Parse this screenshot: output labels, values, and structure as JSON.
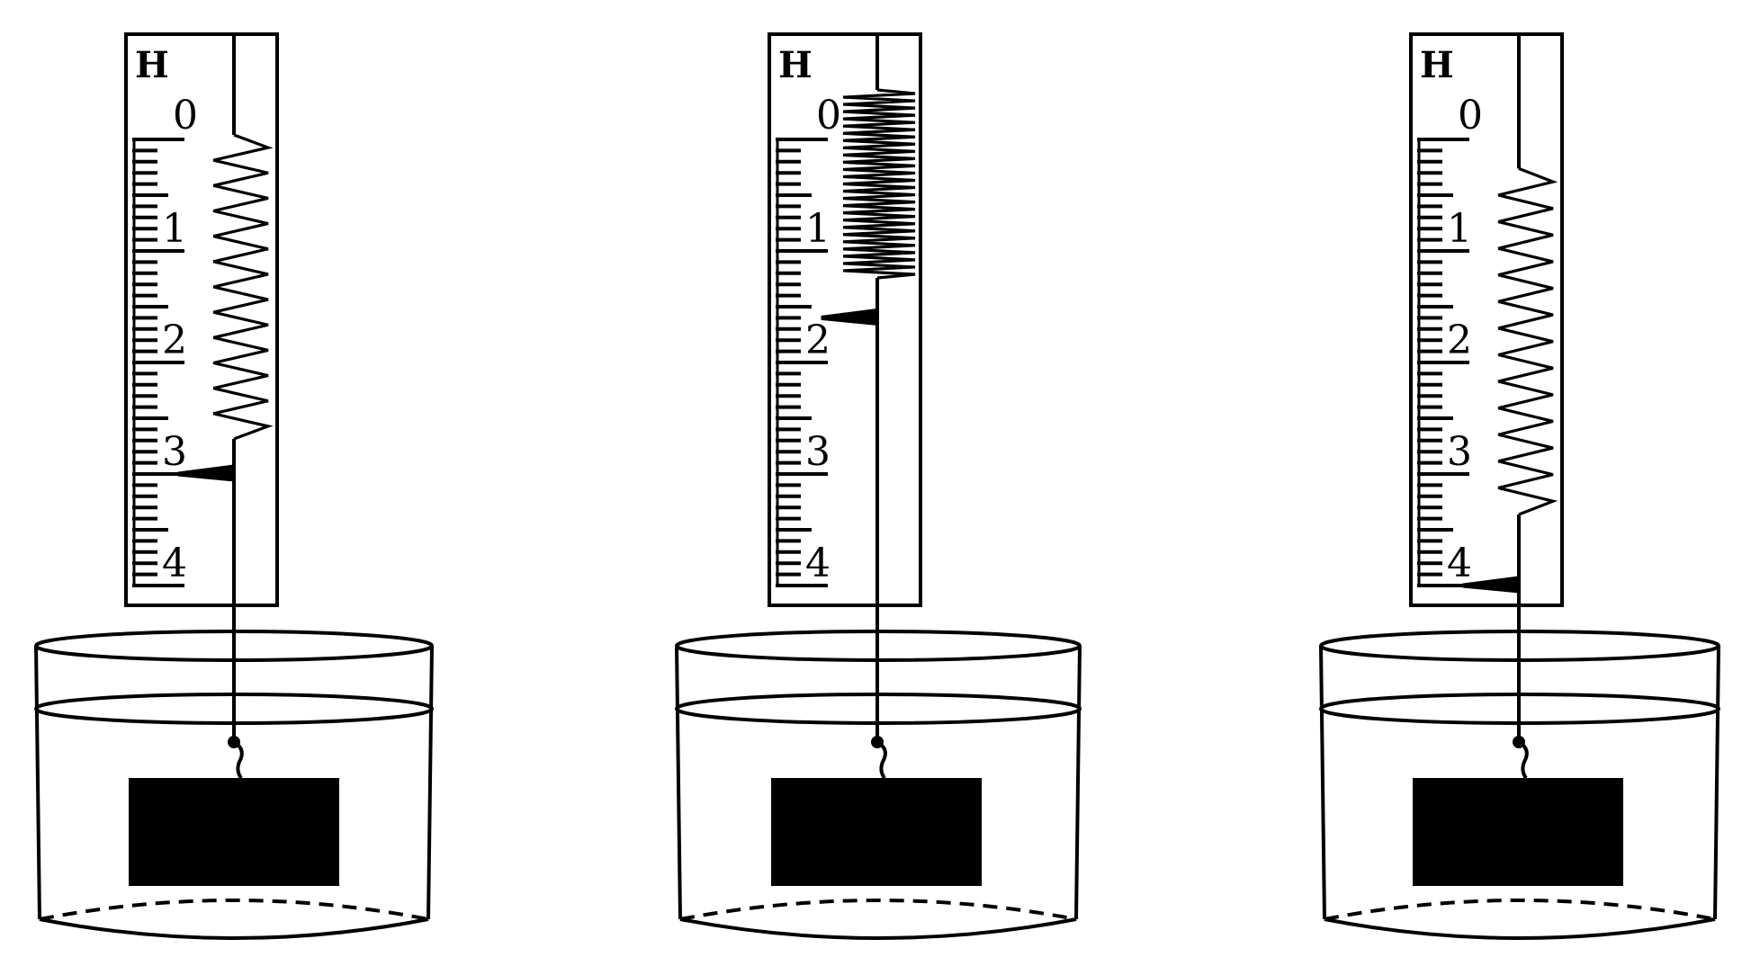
{
  "figures": [
    {
      "id": "left",
      "unit_label": "H",
      "scale_labels": [
        "0",
        "1",
        "2",
        "3",
        "4"
      ],
      "spring_state": "stretched",
      "pointer_reading": 3.0
    },
    {
      "id": "middle",
      "unit_label": "H",
      "scale_labels": [
        "0",
        "1",
        "2",
        "3",
        "4"
      ],
      "spring_state": "compressed",
      "pointer_reading": 1.6
    },
    {
      "id": "right",
      "unit_label": "H",
      "scale_labels": [
        "0",
        "1",
        "2",
        "3",
        "4"
      ],
      "spring_state": "stretched",
      "pointer_reading": 4.0
    }
  ],
  "colors": {
    "ink": "#000000",
    "paper": "#ffffff"
  },
  "icons": [
    "spring-scale-icon",
    "beaker-icon",
    "block-icon"
  ]
}
